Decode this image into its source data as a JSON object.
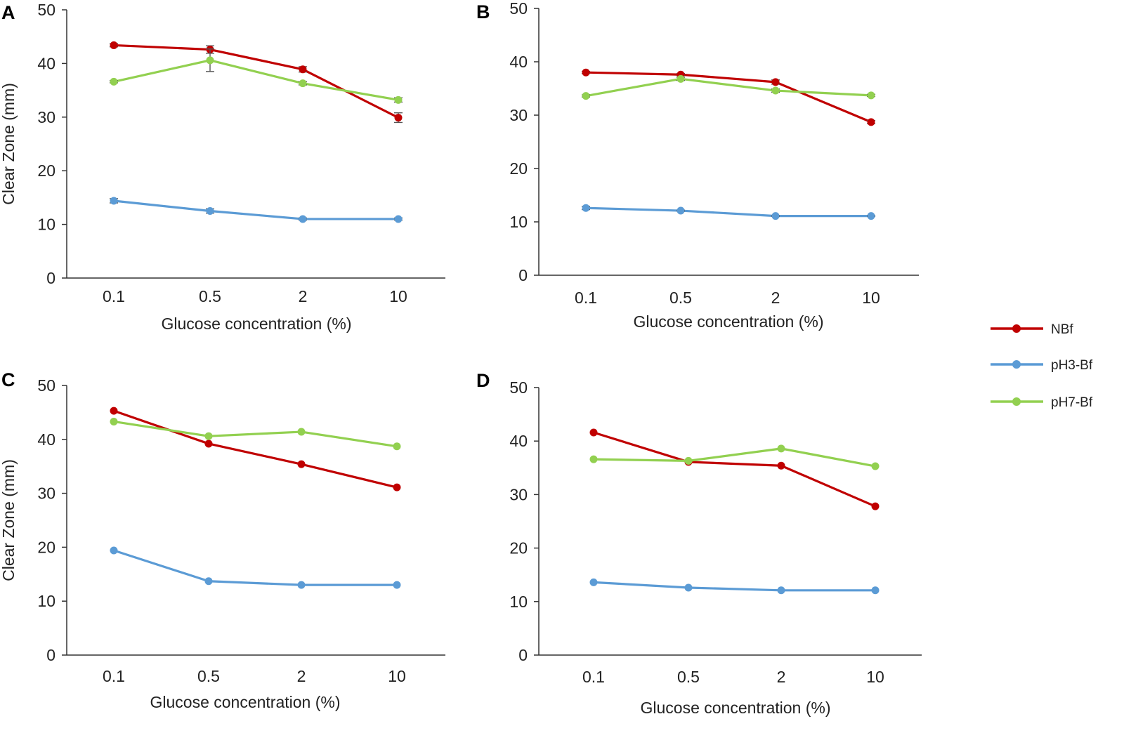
{
  "legend": {
    "items": [
      {
        "name": "NBf",
        "color": "#c00000"
      },
      {
        "name": "pH3-Bf",
        "color": "#5b9bd5"
      },
      {
        "name": "pH7-Bf",
        "color": "#92d050"
      }
    ]
  },
  "chart_data": [
    {
      "panel": "A",
      "type": "line",
      "categories": [
        "0.1",
        "0.5",
        "2",
        "10"
      ],
      "xlabel": "Glucose concentration (%)",
      "ylabel": "Clear Zone (mm)",
      "ylim": [
        0,
        50
      ],
      "yticks": [
        "0",
        "10",
        "20",
        "30",
        "40",
        "50"
      ],
      "series": [
        {
          "name": "NBf",
          "color": "#c00000",
          "values": [
            43.4,
            42.6,
            38.9,
            29.9
          ],
          "errors": [
            0.3,
            0.7,
            0.5,
            0.9
          ]
        },
        {
          "name": "pH3-Bf",
          "color": "#5b9bd5",
          "values": [
            14.4,
            12.5,
            11.0,
            11.0
          ],
          "errors": [
            0.4,
            0.4,
            0.2,
            0.2
          ]
        },
        {
          "name": "pH7-Bf",
          "color": "#92d050",
          "values": [
            36.6,
            40.6,
            36.3,
            33.2
          ],
          "errors": [
            0.2,
            2.1,
            0.3,
            0.4
          ]
        }
      ]
    },
    {
      "panel": "B",
      "type": "line",
      "categories": [
        "0.1",
        "0.5",
        "2",
        "10"
      ],
      "xlabel": "Glucose concentration (%)",
      "ylabel": "",
      "ylim": [
        0,
        50
      ],
      "yticks": [
        "0",
        "10",
        "20",
        "30",
        "40",
        "50"
      ],
      "series": [
        {
          "name": "NBf",
          "color": "#c00000",
          "values": [
            38.0,
            37.6,
            36.2,
            28.7
          ],
          "errors": [
            0.2,
            0.2,
            0.4,
            0.3
          ]
        },
        {
          "name": "pH3-Bf",
          "color": "#5b9bd5",
          "values": [
            12.6,
            12.1,
            11.1,
            11.1
          ],
          "errors": [
            0.3,
            0.1,
            0.1,
            0.1
          ]
        },
        {
          "name": "pH7-Bf",
          "color": "#92d050",
          "values": [
            33.6,
            36.8,
            34.6,
            33.7
          ],
          "errors": [
            0.2,
            0.3,
            0.3,
            0.2
          ]
        }
      ]
    },
    {
      "panel": "C",
      "type": "line",
      "categories": [
        "0.1",
        "0.5",
        "2",
        "10"
      ],
      "xlabel": "Glucose concentration (%)",
      "ylabel": "Clear Zone (mm)",
      "ylim": [
        0,
        50
      ],
      "yticks": [
        "0",
        "10",
        "20",
        "30",
        "40",
        "50"
      ],
      "series": [
        {
          "name": "NBf",
          "color": "#c00000",
          "values": [
            45.3,
            39.2,
            35.4,
            31.1
          ],
          "errors": [
            0,
            0,
            0,
            0
          ]
        },
        {
          "name": "pH3-Bf",
          "color": "#5b9bd5",
          "values": [
            19.4,
            13.7,
            13.0,
            13.0
          ],
          "errors": [
            0,
            0,
            0,
            0
          ]
        },
        {
          "name": "pH7-Bf",
          "color": "#92d050",
          "values": [
            43.3,
            40.6,
            41.4,
            38.7
          ],
          "errors": [
            0,
            0,
            0,
            0
          ]
        }
      ]
    },
    {
      "panel": "D",
      "type": "line",
      "categories": [
        "0.1",
        "0.5",
        "2",
        "10"
      ],
      "xlabel": "Glucose concentration (%)",
      "ylabel": "",
      "ylim": [
        0,
        50
      ],
      "yticks": [
        "0",
        "10",
        "20",
        "30",
        "40",
        "50"
      ],
      "series": [
        {
          "name": "NBf",
          "color": "#c00000",
          "values": [
            41.6,
            36.1,
            35.4,
            27.8
          ],
          "errors": [
            0,
            0,
            0,
            0
          ]
        },
        {
          "name": "pH3-Bf",
          "color": "#5b9bd5",
          "values": [
            13.6,
            12.6,
            12.1,
            12.1
          ],
          "errors": [
            0,
            0,
            0,
            0
          ]
        },
        {
          "name": "pH7-Bf",
          "color": "#92d050",
          "values": [
            36.6,
            36.3,
            38.6,
            35.3
          ],
          "errors": [
            0,
            0,
            0,
            0
          ]
        }
      ]
    }
  ]
}
